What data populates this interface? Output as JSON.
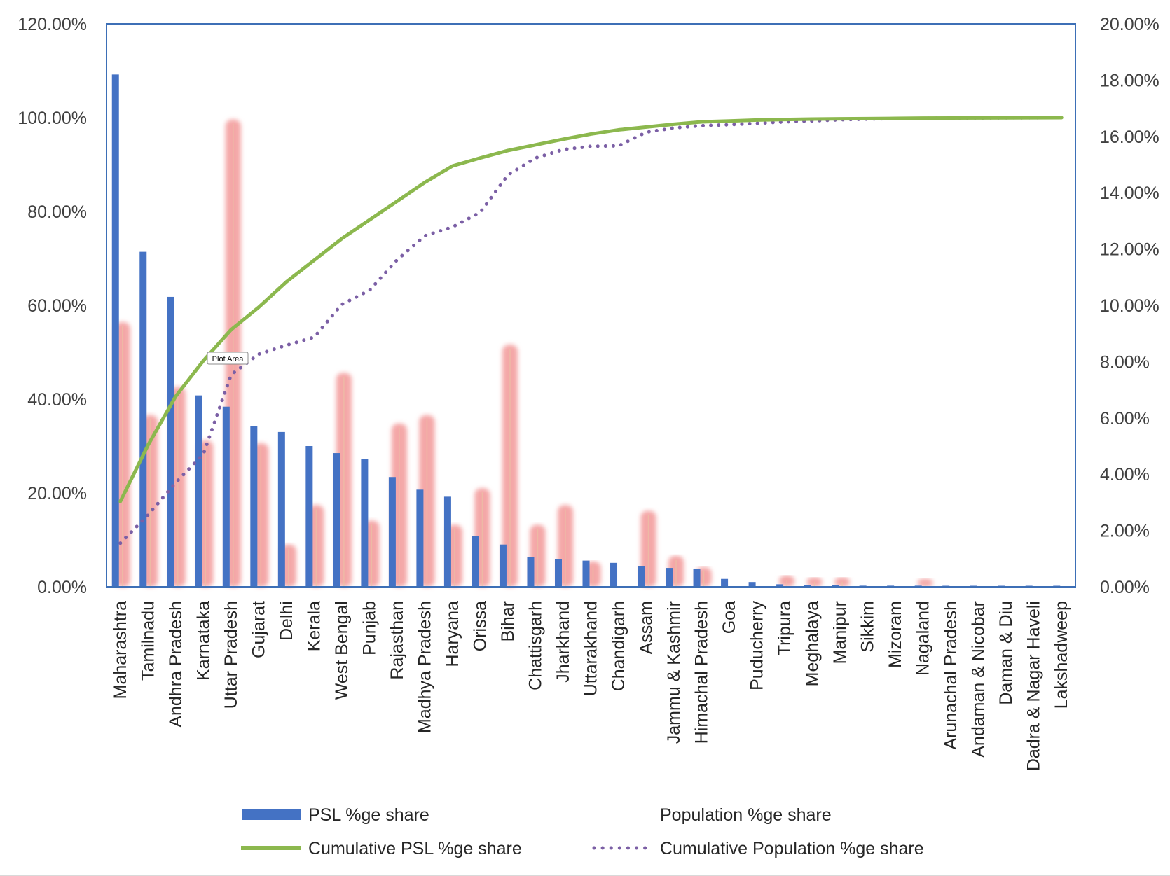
{
  "chart_data": {
    "type": "bar",
    "categories": [
      "Maharashtra",
      "Tamilnadu",
      "Andhra Pradesh",
      "Karnataka",
      "Uttar Pradesh",
      "Gujarat",
      "Delhi",
      "Kerala",
      "West Bengal",
      "Punjab",
      "Rajasthan",
      "Madhya Pradesh",
      "Haryana",
      "Orissa",
      "Bihar",
      "Chattisgarh",
      "Jharkhand",
      "Uttarakhand",
      "Chandigarh",
      "Assam",
      "Jammu & Kashmir",
      "Himachal Pradesh",
      "Goa",
      "Puducherry",
      "Tripura",
      "Meghalaya",
      "Manipur",
      "Sikkim",
      "Mizoram",
      "Nagaland",
      "Arunachal Pradesh",
      "Andaman & Nicobar",
      "Daman & Diu",
      "Dadra & Nagar Haveli",
      "Lakshadweep"
    ],
    "series": [
      {
        "name": "PSL %ge share",
        "axis": "secondary",
        "render": "bar",
        "color": "#4472c4",
        "values": [
          18.2,
          11.9,
          10.3,
          6.8,
          6.4,
          5.7,
          5.5,
          5.0,
          4.75,
          4.55,
          3.9,
          3.45,
          3.2,
          1.8,
          1.5,
          1.05,
          0.98,
          0.93,
          0.85,
          0.73,
          0.67,
          0.63,
          0.28,
          0.17,
          0.09,
          0.07,
          0.05,
          0.04,
          0.04,
          0.04,
          0.03,
          0.03,
          0.02,
          0.02,
          0.02
        ]
      },
      {
        "name": "Population %ge share",
        "axis": "secondary",
        "render": "blurred-bar",
        "color": "#f4a7a7",
        "values": [
          9.4,
          6.1,
          7.1,
          5.2,
          16.6,
          5.1,
          1.5,
          2.9,
          7.6,
          2.35,
          5.8,
          6.1,
          2.2,
          3.5,
          8.6,
          2.2,
          2.9,
          0.9,
          0.0,
          2.7,
          1.1,
          0.7,
          0.0,
          0.0,
          0.4,
          0.33,
          0.33,
          0.0,
          0.0,
          0.28,
          0.0,
          0.0,
          0.0,
          0.0,
          0.0
        ]
      },
      {
        "name": "Cumulative PSL %ge share",
        "axis": "primary",
        "render": "line",
        "color": "#8cb84e",
        "values": [
          18.2,
          30.2,
          40.6,
          48.2,
          54.8,
          59.6,
          65.0,
          69.6,
          74.2,
          78.2,
          82.2,
          86.2,
          89.7,
          91.4,
          93.0,
          94.2,
          95.4,
          96.5,
          97.4,
          98.0,
          98.6,
          99.1,
          99.3,
          99.5,
          99.6,
          99.7,
          99.75,
          99.8,
          99.85,
          99.9,
          99.92,
          99.94,
          99.96,
          99.98,
          100.0
        ]
      },
      {
        "name": "Cumulative Population %ge share",
        "axis": "primary",
        "render": "dotted-line",
        "color": "#7b5fa5",
        "values": [
          9.3,
          15.3,
          22.2,
          28.3,
          45.2,
          49.6,
          51.5,
          53.2,
          60.2,
          63.2,
          69.7,
          74.8,
          76.7,
          79.8,
          87.8,
          91.4,
          93.2,
          93.9,
          94.0,
          96.9,
          97.8,
          98.3,
          98.5,
          98.8,
          99.1,
          99.3,
          99.55,
          99.7,
          99.8,
          99.87,
          99.9,
          99.93,
          99.96,
          99.98,
          100.0
        ]
      }
    ],
    "y_axis_left": {
      "min": 0,
      "max": 120,
      "ticks": [
        "0.00%",
        "20.00%",
        "40.00%",
        "60.00%",
        "80.00%",
        "100.00%",
        "120.00%"
      ]
    },
    "y_axis_right": {
      "min": 0,
      "max": 20,
      "ticks": [
        "0.00%",
        "2.00%",
        "4.00%",
        "6.00%",
        "8.00%",
        "10.00%",
        "12.00%",
        "14.00%",
        "16.00%",
        "18.00%",
        "20.00%"
      ]
    },
    "legend_position": "bottom",
    "grid": false
  },
  "tooltip": {
    "label": "Plot Area"
  },
  "legend": [
    {
      "label": "PSL %ge share",
      "color": "#4472c4",
      "style": "bar"
    },
    {
      "label": "Population %ge share",
      "color": "#e6c59a",
      "style": "blurred-line"
    },
    {
      "label": "Cumulative PSL %ge share",
      "color": "#8cb84e",
      "style": "solid-line"
    },
    {
      "label": "Cumulative Population %ge share",
      "color": "#7b5fa5",
      "style": "dotted-line"
    }
  ]
}
